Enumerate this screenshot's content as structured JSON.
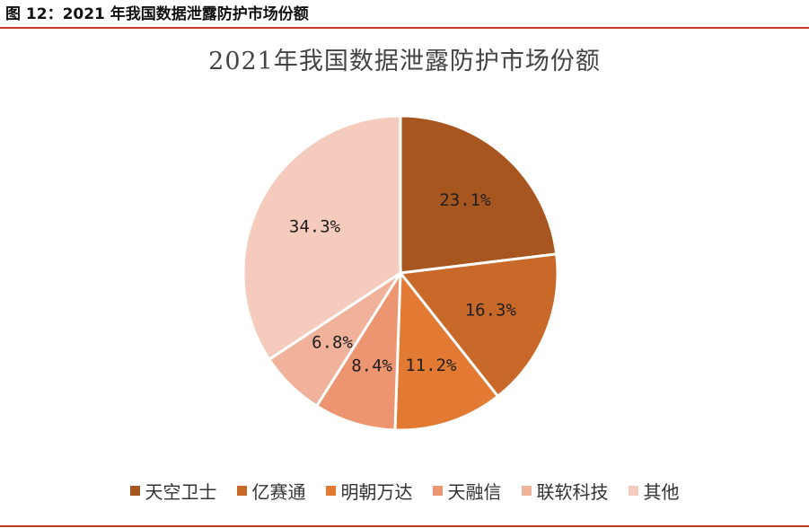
{
  "caption": "图 12：2021 年我国数据泄露防护市场份额",
  "chart_data": {
    "type": "pie",
    "title": "2021年我国数据泄露防护市场份额",
    "legend_position": "bottom",
    "slices": [
      {
        "name": "天空卫士",
        "value": 23.1,
        "label": "23.1%",
        "color": "#a8561f"
      },
      {
        "name": "亿赛通",
        "value": 16.3,
        "label": "16.3%",
        "color": "#c8692a"
      },
      {
        "name": "明朝万达",
        "value": 11.2,
        "label": "11.2%",
        "color": "#e27a33"
      },
      {
        "name": "天融信",
        "value": 8.4,
        "label": "8.4%",
        "color": "#ec9570"
      },
      {
        "name": "联软科技",
        "value": 6.8,
        "label": "6.8%",
        "color": "#f0b29a"
      },
      {
        "name": "其他",
        "value": 34.3,
        "label": "34.3%",
        "color": "#f5cbbd"
      }
    ]
  }
}
